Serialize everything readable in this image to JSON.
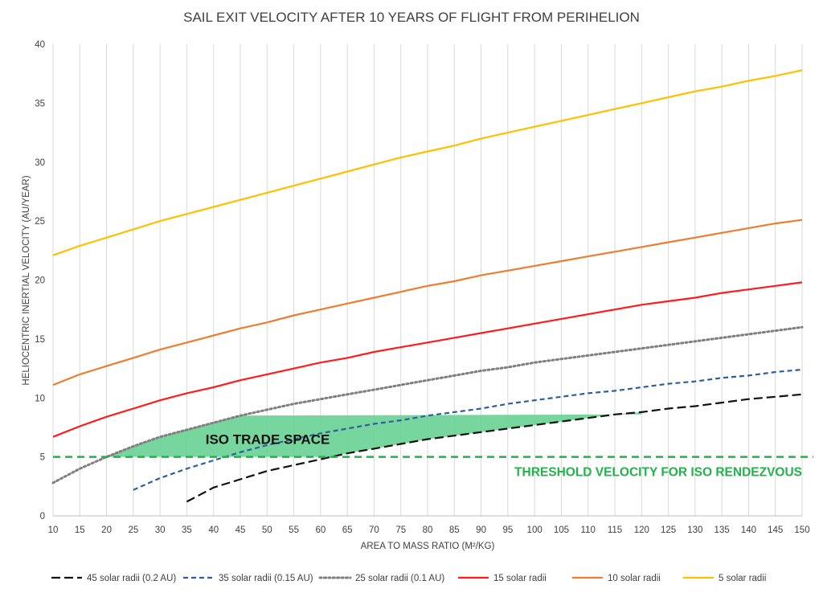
{
  "chart_data": {
    "type": "line",
    "title": "SAIL EXIT VELOCITY AFTER 10 YEARS OF FLIGHT FROM PERIHELION",
    "xlabel": "AREA TO MASS RATIO (M²/KG)",
    "ylabel": "HELIOCENTRIC INERTIAL  VELOCITY (AU/YEAR)",
    "xlim": [
      10,
      150
    ],
    "ylim": [
      0,
      40
    ],
    "x_ticks": [
      10,
      15,
      20,
      25,
      30,
      35,
      40,
      45,
      50,
      55,
      60,
      65,
      70,
      75,
      80,
      85,
      90,
      95,
      100,
      105,
      110,
      115,
      120,
      125,
      130,
      135,
      140,
      145,
      150
    ],
    "y_ticks": [
      0,
      5,
      10,
      15,
      20,
      25,
      30,
      35,
      40
    ],
    "grid": "vertical",
    "legend_position": "bottom",
    "series": [
      {
        "name": "45 solar radii (0.2 AU)",
        "color": "#111111",
        "dash": "long-dash",
        "x": [
          35,
          40,
          45,
          50,
          55,
          60,
          65,
          70,
          75,
          80,
          85,
          90,
          95,
          100,
          105,
          110,
          115,
          120,
          125,
          130,
          135,
          140,
          145,
          150
        ],
        "y": [
          1.2,
          2.4,
          3.1,
          3.8,
          4.3,
          4.8,
          5.3,
          5.7,
          6.1,
          6.5,
          6.8,
          7.1,
          7.4,
          7.7,
          8.0,
          8.3,
          8.6,
          8.8,
          9.1,
          9.3,
          9.6,
          9.9,
          10.1,
          10.3
        ]
      },
      {
        "name": "35 solar radii (0.15 AU)",
        "color": "#2e5f9c",
        "dash": "dash",
        "x": [
          25,
          30,
          35,
          40,
          45,
          50,
          55,
          60,
          65,
          70,
          75,
          80,
          85,
          90,
          95,
          100,
          105,
          110,
          115,
          120,
          125,
          130,
          135,
          140,
          145,
          150
        ],
        "y": [
          2.2,
          3.2,
          4.0,
          4.7,
          5.4,
          6.0,
          6.5,
          7.0,
          7.4,
          7.8,
          8.1,
          8.5,
          8.8,
          9.1,
          9.5,
          9.8,
          10.1,
          10.4,
          10.6,
          10.9,
          11.2,
          11.4,
          11.7,
          11.9,
          12.2,
          12.4
        ]
      },
      {
        "name": "25 solar radii (0.1 AU)",
        "color": "#7f7f7f",
        "dash": "dot",
        "x": [
          10,
          15,
          20,
          25,
          30,
          35,
          40,
          45,
          50,
          55,
          60,
          65,
          70,
          75,
          80,
          85,
          90,
          95,
          100,
          105,
          110,
          115,
          120,
          125,
          130,
          135,
          140,
          145,
          150
        ],
        "y": [
          2.8,
          4.0,
          5.0,
          5.9,
          6.7,
          7.3,
          7.9,
          8.5,
          9.0,
          9.5,
          9.9,
          10.3,
          10.7,
          11.1,
          11.5,
          11.9,
          12.3,
          12.6,
          13.0,
          13.3,
          13.6,
          13.9,
          14.2,
          14.5,
          14.8,
          15.1,
          15.4,
          15.7,
          16.0
        ]
      },
      {
        "name": "15 solar radii",
        "color": "#ff1c1c",
        "dash": "solid",
        "x": [
          10,
          15,
          20,
          25,
          30,
          35,
          40,
          45,
          50,
          55,
          60,
          65,
          70,
          75,
          80,
          85,
          90,
          95,
          100,
          105,
          110,
          115,
          120,
          125,
          130,
          135,
          140,
          145,
          150
        ],
        "y": [
          6.7,
          7.6,
          8.4,
          9.1,
          9.8,
          10.4,
          10.9,
          11.5,
          12.0,
          12.5,
          13.0,
          13.4,
          13.9,
          14.3,
          14.7,
          15.1,
          15.5,
          15.9,
          16.3,
          16.7,
          17.1,
          17.5,
          17.9,
          18.2,
          18.5,
          18.9,
          19.2,
          19.5,
          19.8
        ]
      },
      {
        "name": "10 solar radii",
        "color": "#ed7d31",
        "dash": "solid",
        "x": [
          10,
          15,
          20,
          25,
          30,
          35,
          40,
          45,
          50,
          55,
          60,
          65,
          70,
          75,
          80,
          85,
          90,
          95,
          100,
          105,
          110,
          115,
          120,
          125,
          130,
          135,
          140,
          145,
          150
        ],
        "y": [
          11.1,
          12.0,
          12.7,
          13.4,
          14.1,
          14.7,
          15.3,
          15.9,
          16.4,
          17.0,
          17.5,
          18.0,
          18.5,
          19.0,
          19.5,
          19.9,
          20.4,
          20.8,
          21.2,
          21.6,
          22.0,
          22.4,
          22.8,
          23.2,
          23.6,
          24.0,
          24.4,
          24.8,
          25.1
        ]
      },
      {
        "name": "5 solar radii",
        "color": "#ffc000",
        "dash": "solid",
        "x": [
          10,
          15,
          20,
          25,
          30,
          35,
          40,
          45,
          50,
          55,
          60,
          65,
          70,
          75,
          80,
          85,
          90,
          95,
          100,
          105,
          110,
          115,
          120,
          125,
          130,
          135,
          140,
          145,
          150
        ],
        "y": [
          22.1,
          22.9,
          23.6,
          24.3,
          25.0,
          25.6,
          26.2,
          26.8,
          27.4,
          28.0,
          28.6,
          29.2,
          29.8,
          30.4,
          30.9,
          31.4,
          32.0,
          32.5,
          33.0,
          33.5,
          34.0,
          34.5,
          35.0,
          35.5,
          36.0,
          36.4,
          36.9,
          37.3,
          37.8
        ]
      }
    ],
    "threshold": {
      "y": 5,
      "color": "#21b24b",
      "label": "THRESHOLD VELOCITY FOR ISO RENDEZVOUS"
    },
    "trade_space": {
      "label": "ISO TRADE SPACE",
      "color": "#5fcf8c",
      "top_y": 8.6,
      "upper_boundary": {
        "x": [
          20,
          25,
          30,
          35,
          40,
          45
        ],
        "y": [
          5.0,
          5.9,
          6.7,
          7.3,
          7.9,
          8.5
        ]
      },
      "lower_boundary": {
        "x": [
          120,
          115,
          110,
          105,
          100,
          95,
          90,
          85,
          80,
          75,
          70,
          65,
          62
        ],
        "y": [
          8.8,
          8.6,
          8.3,
          8.0,
          7.7,
          7.4,
          7.1,
          6.8,
          6.5,
          6.1,
          5.7,
          5.3,
          5.0
        ]
      }
    }
  }
}
